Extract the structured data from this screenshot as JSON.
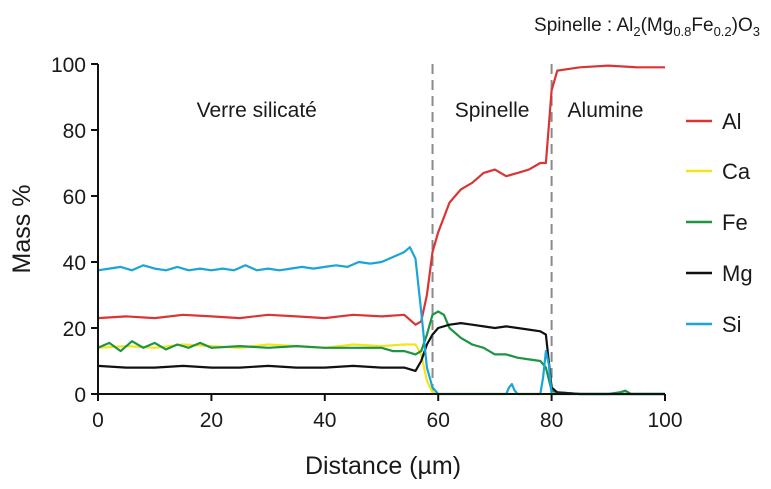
{
  "chart_data": {
    "type": "line",
    "title_prefix": "Spinelle : Al",
    "title_formula": [
      {
        "t": "Spinelle : Al",
        "sub": false
      },
      {
        "t": "2",
        "sub": true
      },
      {
        "t": "(Mg",
        "sub": false
      },
      {
        "t": "0.8",
        "sub": true
      },
      {
        "t": "Fe",
        "sub": false
      },
      {
        "t": "0.2",
        "sub": true
      },
      {
        "t": ")O",
        "sub": false
      },
      {
        "t": "3",
        "sub": true
      }
    ],
    "xlabel": "Distance (µm)",
    "ylabel": "Mass %",
    "xlim": [
      0,
      100
    ],
    "ylim": [
      0,
      100
    ],
    "xticks": [
      0,
      20,
      40,
      60,
      80,
      100
    ],
    "yticks": [
      0,
      20,
      40,
      60,
      80,
      100
    ],
    "grid": false,
    "legend_position": "right",
    "regions": [
      {
        "label": "Verre silicaté",
        "x_center": 28
      },
      {
        "label": "Spinelle",
        "x_center": 69.5
      },
      {
        "label": "Alumine",
        "x_center": 89.5
      }
    ],
    "boundaries": [
      59,
      80
    ],
    "series": [
      {
        "name": "Al",
        "color": "#d93535",
        "x": [
          0,
          5,
          10,
          15,
          20,
          25,
          30,
          35,
          40,
          45,
          50,
          54,
          56,
          57,
          58,
          59,
          60,
          62,
          64,
          66,
          68,
          70,
          72,
          74,
          76,
          78,
          79,
          80,
          81,
          85,
          90,
          95,
          100
        ],
        "y": [
          23,
          23.5,
          23,
          24,
          23.5,
          23,
          24,
          23.5,
          23,
          24,
          23.5,
          24,
          21,
          22,
          30,
          43,
          49,
          58,
          62,
          64,
          67,
          68,
          66,
          67,
          68,
          70,
          70,
          92,
          98,
          99,
          99.5,
          99,
          99
        ]
      },
      {
        "name": "Ca",
        "color": "#f2e51b",
        "x": [
          0,
          5,
          10,
          15,
          20,
          25,
          30,
          35,
          40,
          45,
          50,
          54,
          56,
          57,
          58,
          59,
          60,
          62,
          65,
          70,
          75,
          80,
          85,
          90,
          95,
          100
        ],
        "y": [
          14,
          14.5,
          14,
          15,
          14.5,
          14,
          15,
          14.5,
          14,
          15,
          14.5,
          15,
          15,
          12,
          4,
          0.5,
          0,
          0,
          0,
          0,
          0,
          0,
          0,
          0,
          0,
          0
        ]
      },
      {
        "name": "Fe",
        "color": "#1d9442",
        "x": [
          0,
          2,
          4,
          6,
          8,
          10,
          12,
          14,
          16,
          18,
          20,
          25,
          30,
          35,
          40,
          45,
          50,
          52,
          54,
          56,
          57,
          58,
          59,
          60,
          61,
          62,
          64,
          66,
          68,
          70,
          72,
          74,
          76,
          78,
          79,
          80,
          81,
          85,
          90,
          92,
          93,
          94,
          95,
          100
        ],
        "y": [
          14,
          15.5,
          13,
          16,
          14,
          15.5,
          13.5,
          15,
          14,
          15.5,
          14,
          14.5,
          14,
          14.5,
          14,
          14,
          14,
          13,
          13,
          12,
          13,
          18,
          24,
          25,
          24,
          20,
          17,
          15,
          14,
          12,
          12,
          11,
          10.5,
          10,
          8,
          1,
          0.5,
          0,
          0,
          0.5,
          1,
          0,
          0,
          0
        ]
      },
      {
        "name": "Mg",
        "color": "#111111",
        "x": [
          0,
          5,
          10,
          15,
          20,
          25,
          30,
          35,
          40,
          45,
          50,
          54,
          56,
          57,
          58,
          59,
          60,
          62,
          64,
          66,
          68,
          70,
          72,
          74,
          76,
          78,
          79,
          80,
          81,
          85,
          90,
          95,
          100
        ],
        "y": [
          8.5,
          8,
          8,
          8.5,
          8,
          8,
          8.5,
          8,
          8,
          8.5,
          8,
          8,
          7,
          10,
          15,
          18,
          20,
          21,
          21.5,
          21,
          20.5,
          20,
          20.5,
          20,
          19.5,
          19,
          18,
          2,
          0.5,
          0,
          0,
          0,
          0
        ]
      },
      {
        "name": "Si",
        "color": "#1ba4d8",
        "x": [
          0,
          2,
          4,
          6,
          8,
          10,
          12,
          14,
          16,
          18,
          20,
          22,
          24,
          26,
          28,
          30,
          32,
          34,
          36,
          38,
          40,
          42,
          44,
          46,
          48,
          50,
          52,
          54,
          55,
          56,
          57,
          58,
          59,
          60,
          61,
          72,
          72.5,
          73,
          73.5,
          74,
          78,
          78.5,
          79,
          79.5,
          80,
          81,
          85,
          90,
          95,
          100
        ],
        "y": [
          37.5,
          38,
          38.5,
          37.5,
          39,
          38,
          37.5,
          38.5,
          37.5,
          38,
          37.5,
          38,
          37.5,
          39,
          37.5,
          38,
          37.5,
          38,
          38.5,
          38,
          38.5,
          39,
          38.5,
          40,
          39.5,
          40,
          41.5,
          43,
          44.5,
          41,
          25,
          8,
          2,
          0,
          0,
          0,
          2,
          3,
          1,
          0,
          0,
          5,
          13,
          9,
          0,
          0,
          0,
          0,
          0,
          0
        ]
      }
    ]
  }
}
